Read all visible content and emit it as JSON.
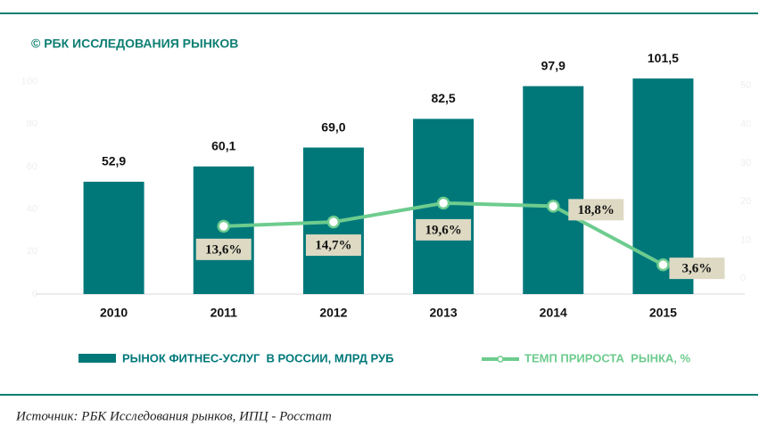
{
  "chart_data": {
    "type": "bar_line",
    "subtitle": "© РБК ИССЛЕДОВАНИЯ РЫНКОВ",
    "source": "Источник: РБК Исследования рынков, ИПЦ - Росстат",
    "categories": [
      "2010",
      "2011",
      "2012",
      "2013",
      "2014",
      "2015"
    ],
    "series": [
      {
        "name": "РЫНОК ФИТНЕС-УСЛУГ  В РОССИИ, МЛРД РУБ",
        "type": "bar",
        "color": "#00787a",
        "values": [
          52.9,
          60.1,
          69.0,
          82.5,
          97.9,
          101.5
        ],
        "value_labels": [
          "52,9",
          "60,1",
          "69,0",
          "82,5",
          "97,9",
          "101,5"
        ]
      },
      {
        "name": "ТЕМП ПРИРОСТА  РЫНКА, %",
        "type": "line",
        "axis": "y2",
        "color": "#6dcc8e",
        "values": [
          null,
          13.6,
          14.7,
          19.6,
          18.8,
          3.6
        ],
        "value_labels": [
          null,
          "13,6%",
          "14,7%",
          "19,6%",
          "18,8%",
          "3,6%"
        ]
      }
    ],
    "ylim": [
      0,
      120
    ],
    "yticks": [
      0,
      20,
      40,
      60,
      80,
      100
    ],
    "y2lim": [
      -4,
      54
    ],
    "y2ticks": [
      0,
      10,
      20,
      30,
      40,
      50
    ]
  }
}
